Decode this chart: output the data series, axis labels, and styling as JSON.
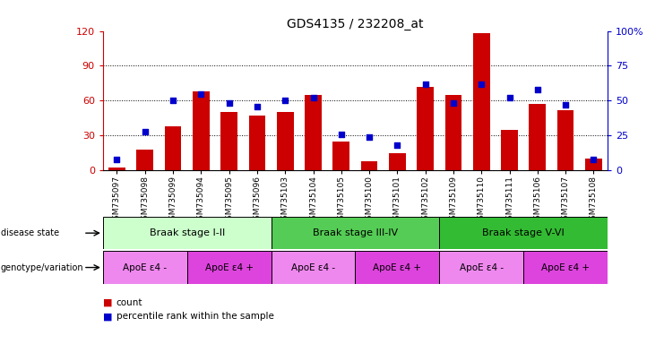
{
  "title": "GDS4135 / 232208_at",
  "samples": [
    "GSM735097",
    "GSM735098",
    "GSM735099",
    "GSM735094",
    "GSM735095",
    "GSM735096",
    "GSM735103",
    "GSM735104",
    "GSM735105",
    "GSM735100",
    "GSM735101",
    "GSM735102",
    "GSM735109",
    "GSM735110",
    "GSM735111",
    "GSM735106",
    "GSM735107",
    "GSM735108"
  ],
  "counts": [
    2,
    18,
    38,
    68,
    50,
    47,
    50,
    65,
    25,
    8,
    15,
    72,
    65,
    118,
    35,
    57,
    52,
    10
  ],
  "percentiles": [
    8,
    28,
    50,
    55,
    48,
    46,
    50,
    52,
    26,
    24,
    18,
    62,
    48,
    62,
    52,
    58,
    47,
    8
  ],
  "bar_color": "#CC0000",
  "dot_color": "#0000CC",
  "left_ylim": [
    0,
    120
  ],
  "left_yticks": [
    0,
    30,
    60,
    90,
    120
  ],
  "right_ylim": [
    0,
    100
  ],
  "right_yticks": [
    0,
    25,
    50,
    75,
    100
  ],
  "disease_stages": [
    {
      "label": "Braak stage I-II",
      "start": 0,
      "end": 6,
      "color": "#CCFFCC"
    },
    {
      "label": "Braak stage III-IV",
      "start": 6,
      "end": 12,
      "color": "#55CC55"
    },
    {
      "label": "Braak stage V-VI",
      "start": 12,
      "end": 18,
      "color": "#33BB33"
    }
  ],
  "genotype_groups": [
    {
      "label": "ApoE ε4 -",
      "start": 0,
      "end": 3,
      "color": "#EE88EE"
    },
    {
      "label": "ApoE ε4 +",
      "start": 3,
      "end": 6,
      "color": "#DD44DD"
    },
    {
      "label": "ApoE ε4 -",
      "start": 6,
      "end": 9,
      "color": "#EE88EE"
    },
    {
      "label": "ApoE ε4 +",
      "start": 9,
      "end": 12,
      "color": "#DD44DD"
    },
    {
      "label": "ApoE ε4 -",
      "start": 12,
      "end": 15,
      "color": "#EE88EE"
    },
    {
      "label": "ApoE ε4 +",
      "start": 15,
      "end": 18,
      "color": "#DD44DD"
    }
  ],
  "disease_label": "disease state",
  "genotype_label": "genotype/variation",
  "legend_count": "count",
  "legend_percentile": "percentile rank within the sample",
  "background_color": "#FFFFFF",
  "tick_label_color_left": "#CC0000",
  "tick_label_color_right": "#0000CC"
}
